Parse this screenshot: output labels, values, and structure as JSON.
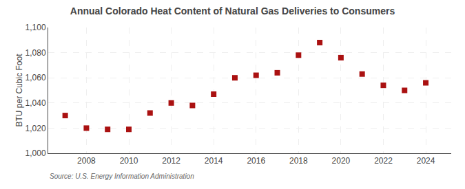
{
  "chart_data": {
    "type": "scatter",
    "title": "Annual Colorado Heat Content of Natural Gas Deliveries to Consumers",
    "ylabel": "BTU per Cubic Foot",
    "annotations": [
      "Source: U.S. Energy Information Administration"
    ],
    "x": [
      2007,
      2008,
      2009,
      2010,
      2011,
      2012,
      2013,
      2014,
      2015,
      2016,
      2017,
      2018,
      2019,
      2020,
      2021,
      2022,
      2023,
      2024
    ],
    "values": [
      1030,
      1020,
      1019,
      1019,
      1032,
      1040,
      1038,
      1047,
      1060,
      1062,
      1064,
      1078,
      1088,
      1076,
      1063,
      1054,
      1050,
      1056
    ],
    "ylim": [
      1000,
      1100
    ],
    "yticks": [
      {
        "value": 1000,
        "label": "1,000"
      },
      {
        "value": 1020,
        "label": "1,020"
      },
      {
        "value": 1040,
        "label": "1,040"
      },
      {
        "value": 1060,
        "label": "1,060"
      },
      {
        "value": 1080,
        "label": "1,080"
      },
      {
        "value": 1100,
        "label": "1,100"
      }
    ],
    "xlim": [
      2006.2,
      2025.2
    ],
    "xticks": [
      2008,
      2010,
      2012,
      2014,
      2016,
      2018,
      2020,
      2022,
      2024
    ],
    "color": "#aa1111",
    "marker": "square",
    "grid": true
  }
}
